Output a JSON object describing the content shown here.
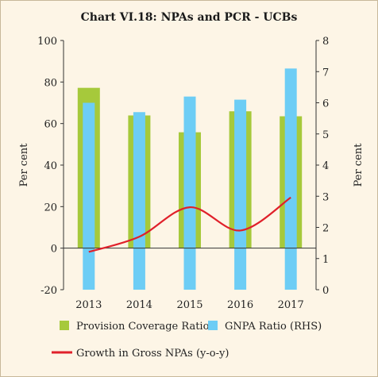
{
  "chart_data": {
    "type": "bar",
    "title": "Chart VI.18: NPAs and PCR - UCBs",
    "categories": [
      "2013",
      "2014",
      "2015",
      "2016",
      "2017"
    ],
    "y_left": {
      "label": "Per cent",
      "lim": [
        -20,
        100
      ],
      "ticks": [
        "-20",
        "0",
        "20",
        "40",
        "60",
        "80",
        "100"
      ]
    },
    "y_right": {
      "label": "Per cent",
      "lim": [
        0,
        8
      ],
      "ticks": [
        "0",
        "1",
        "2",
        "3",
        "4",
        "5",
        "6",
        "7",
        "8"
      ]
    },
    "series": [
      {
        "name": "Provision Coverage Ratio",
        "type": "bar",
        "axis": "left",
        "color": "#a6c93b",
        "values": [
          77.2,
          63.9,
          55.8,
          65.9,
          63.5
        ]
      },
      {
        "name": "GNPA Ratio (RHS)",
        "type": "bar",
        "axis": "right",
        "color": "#6dcdf5",
        "values": [
          6.0,
          5.7,
          6.2,
          6.1,
          7.1
        ]
      },
      {
        "name": "Growth in Gross NPAs (y-o-y)",
        "type": "line",
        "axis": "left",
        "color": "#e0202a",
        "values": [
          -1.8,
          5.5,
          19.7,
          8.5,
          24.4
        ]
      }
    ],
    "legend_position": "bottom",
    "grid": false
  }
}
